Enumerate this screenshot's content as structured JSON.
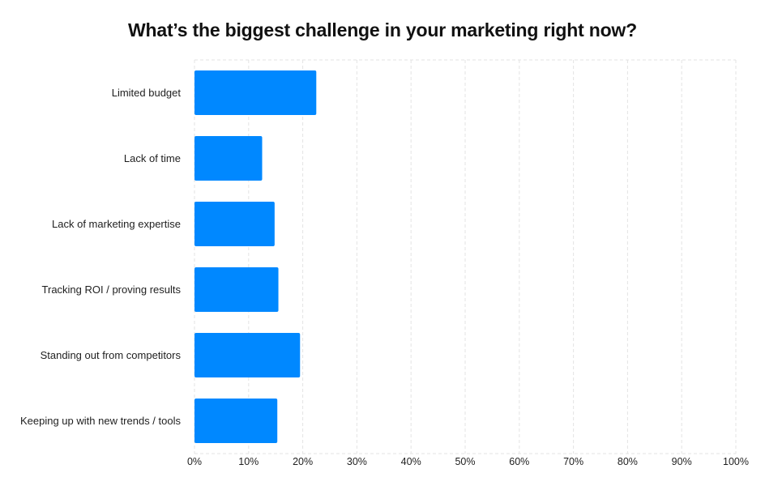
{
  "chart_data": {
    "type": "bar",
    "orientation": "horizontal",
    "title": "What’s the biggest challenge in your marketing right now?",
    "xlabel": "",
    "ylabel": "",
    "categories": [
      "Limited budget",
      "Lack of time",
      "Lack of marketing expertise",
      "Tracking ROI / proving results",
      "Standing out from competitors",
      "Keeping up with new trends / tools"
    ],
    "values": [
      22.5,
      12.5,
      14.8,
      15.5,
      19.5,
      15.3
    ],
    "xlim": [
      0,
      100
    ],
    "xticks": [
      0,
      10,
      20,
      30,
      40,
      50,
      60,
      70,
      80,
      90,
      100
    ],
    "tick_suffix": "%",
    "grid": true,
    "legend": "none",
    "colors": {
      "bar": "#0088ff",
      "grid": "#e3e3e3",
      "text": "#1f1f1f",
      "title": "#111111"
    }
  }
}
